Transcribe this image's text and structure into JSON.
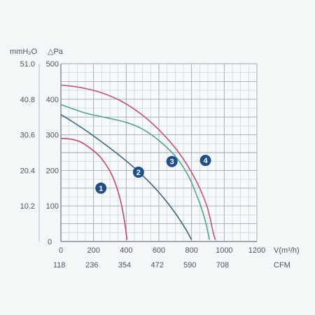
{
  "chart_data": {
    "type": "line",
    "y_units": {
      "left": "mmH₂O",
      "right": "△Pa"
    },
    "x_units": {
      "primary": "V(m³/h)",
      "secondary": "CFM"
    },
    "xlim": [
      0,
      1200
    ],
    "ylim": [
      0,
      500
    ],
    "x_ticks": [
      "0",
      "200",
      "400",
      "600",
      "800",
      "1000",
      "1200"
    ],
    "x_ticks_secondary": [
      "118",
      "236",
      "354",
      "472",
      "590",
      "708"
    ],
    "y_ticks_pa": [
      "100",
      "200",
      "300",
      "400",
      "500"
    ],
    "y_ticks_mmh2o": [
      "10.2",
      "20.4",
      "30.6",
      "40.8",
      "51.0"
    ],
    "y_zero_label": "0",
    "grid": true,
    "series": [
      {
        "name": "1",
        "color": "#cc4468",
        "points": [
          [
            0,
            290
          ],
          [
            60,
            288
          ],
          [
            120,
            280
          ],
          [
            180,
            262
          ],
          [
            240,
            238
          ],
          [
            300,
            198
          ],
          [
            340,
            155
          ],
          [
            370,
            105
          ],
          [
            390,
            55
          ],
          [
            405,
            5
          ]
        ]
      },
      {
        "name": "2",
        "color": "#3d6480",
        "points": [
          [
            0,
            357
          ],
          [
            60,
            340
          ],
          [
            150,
            313
          ],
          [
            250,
            280
          ],
          [
            350,
            245
          ],
          [
            450,
            207
          ],
          [
            550,
            163
          ],
          [
            630,
            122
          ],
          [
            700,
            80
          ],
          [
            760,
            38
          ],
          [
            800,
            5
          ]
        ]
      },
      {
        "name": "3",
        "color": "#4ea58a",
        "points": [
          [
            0,
            385
          ],
          [
            80,
            372
          ],
          [
            160,
            360
          ],
          [
            280,
            348
          ],
          [
            400,
            335
          ],
          [
            500,
            316
          ],
          [
            600,
            284
          ],
          [
            700,
            240
          ],
          [
            780,
            185
          ],
          [
            840,
            120
          ],
          [
            880,
            65
          ],
          [
            910,
            5
          ]
        ]
      },
      {
        "name": "4",
        "color": "#c8507a",
        "points": [
          [
            0,
            440
          ],
          [
            120,
            433
          ],
          [
            250,
            418
          ],
          [
            380,
            392
          ],
          [
            500,
            355
          ],
          [
            600,
            314
          ],
          [
            700,
            263
          ],
          [
            780,
            210
          ],
          [
            850,
            150
          ],
          [
            900,
            90
          ],
          [
            930,
            30
          ],
          [
            945,
            5
          ]
        ]
      }
    ],
    "markers": [
      {
        "label": "1",
        "x": 245,
        "y": 150
      },
      {
        "label": "2",
        "x": 475,
        "y": 195
      },
      {
        "label": "3",
        "x": 680,
        "y": 225
      },
      {
        "label": "4",
        "x": 885,
        "y": 228
      }
    ],
    "marker_color": "#1f4f8a"
  }
}
